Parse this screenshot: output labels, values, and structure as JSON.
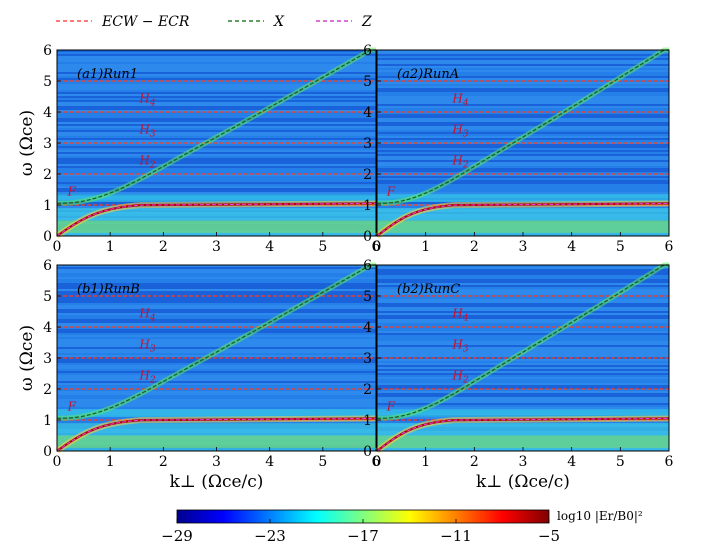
{
  "legend": [
    {
      "label": "ECW − ECR",
      "color": "#ff4d4d"
    },
    {
      "label": "X",
      "color": "#2f7d2f"
    },
    {
      "label": "Z",
      "color": "#cc44cc"
    }
  ],
  "chart_data": [
    {
      "type": "heatmap",
      "panel": "a1",
      "label": "(a1)Run1",
      "xlim": [
        0,
        6
      ],
      "ylim": [
        0,
        6
      ],
      "xticks": [
        0,
        1,
        2,
        3,
        4,
        5,
        6
      ],
      "yticks": [
        0,
        1,
        2,
        3,
        4,
        5,
        6
      ],
      "show_xlabel": false,
      "show_ylabel": true
    },
    {
      "type": "heatmap",
      "panel": "a2",
      "label": "(a2)RunA",
      "xlim": [
        0,
        6
      ],
      "ylim": [
        0,
        6
      ],
      "xticks": [
        0,
        1,
        2,
        3,
        4,
        5,
        6
      ],
      "yticks": [
        0,
        1,
        2,
        3,
        4,
        5,
        6
      ],
      "show_xlabel": false,
      "show_ylabel": false
    },
    {
      "type": "heatmap",
      "panel": "b1",
      "label": "(b1)RunB",
      "xlim": [
        0,
        6
      ],
      "ylim": [
        0,
        6
      ],
      "xticks": [
        0,
        1,
        2,
        3,
        4,
        5,
        6
      ],
      "yticks": [
        0,
        1,
        2,
        3,
        4,
        5,
        6
      ],
      "show_xlabel": true,
      "show_ylabel": true
    },
    {
      "type": "heatmap",
      "panel": "b2",
      "label": "(b2)RunC",
      "xlim": [
        0,
        6
      ],
      "ylim": [
        0,
        6
      ],
      "xticks": [
        0,
        1,
        2,
        3,
        4,
        5,
        6
      ],
      "yticks": [
        0,
        1,
        2,
        3,
        4,
        5,
        6
      ],
      "show_xlabel": true,
      "show_ylabel": false
    }
  ],
  "axes": {
    "xlabel": "k⊥ (Ωce/c)",
    "ylabel": "ω (Ωce)"
  },
  "harmonic_lines": [
    1,
    2,
    3,
    4,
    5
  ],
  "annotations": [
    {
      "text": "F",
      "x": 0.2,
      "y": 1.3
    },
    {
      "text": "H2",
      "x": 1.55,
      "y": 2.3
    },
    {
      "text": "H3",
      "x": 1.55,
      "y": 3.3
    },
    {
      "text": "H4",
      "x": 1.55,
      "y": 4.3
    }
  ],
  "colorbar": {
    "label": "log10 |Er/B0|²",
    "min": -29,
    "max": -5,
    "ticks": [
      -29,
      -23,
      -17,
      -11,
      -5
    ]
  }
}
